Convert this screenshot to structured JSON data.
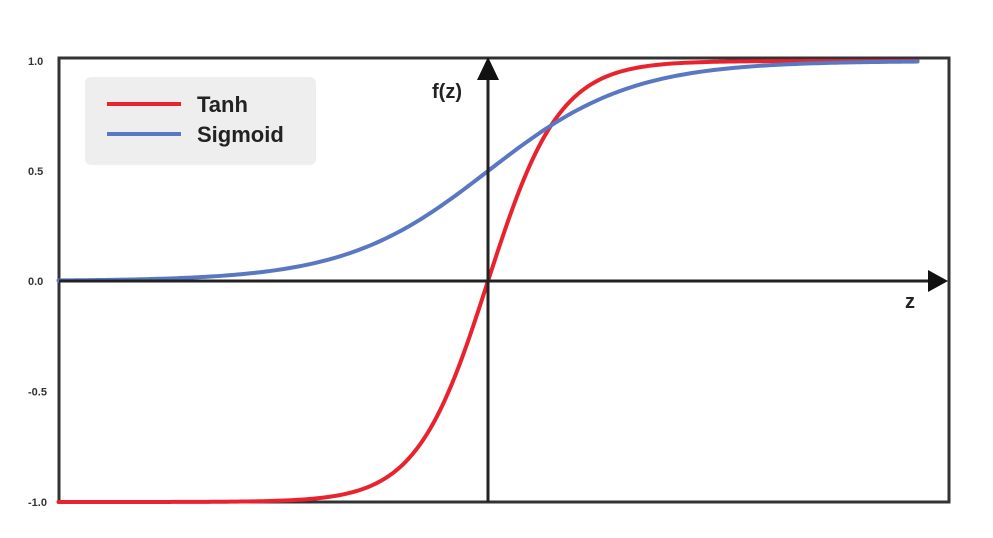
{
  "chart_data": {
    "type": "line",
    "title": "",
    "xlabel": "z",
    "ylabel": "f(z)",
    "ylim": [
      -1.0,
      1.0
    ],
    "xlim": [
      -6,
      6
    ],
    "y_ticks": [
      "1.0",
      "0.5",
      "0.0",
      "-0.5",
      "-1.0"
    ],
    "y_tick_values": [
      1.0,
      0.5,
      0.0,
      -0.5,
      -1.0
    ],
    "grid": false,
    "legend_position": "top-left",
    "series": [
      {
        "name": "Tanh",
        "function": "tanh",
        "color": "#e8232e"
      },
      {
        "name": "Sigmoid",
        "function": "sigmoid",
        "color": "#5a78c2"
      }
    ]
  }
}
